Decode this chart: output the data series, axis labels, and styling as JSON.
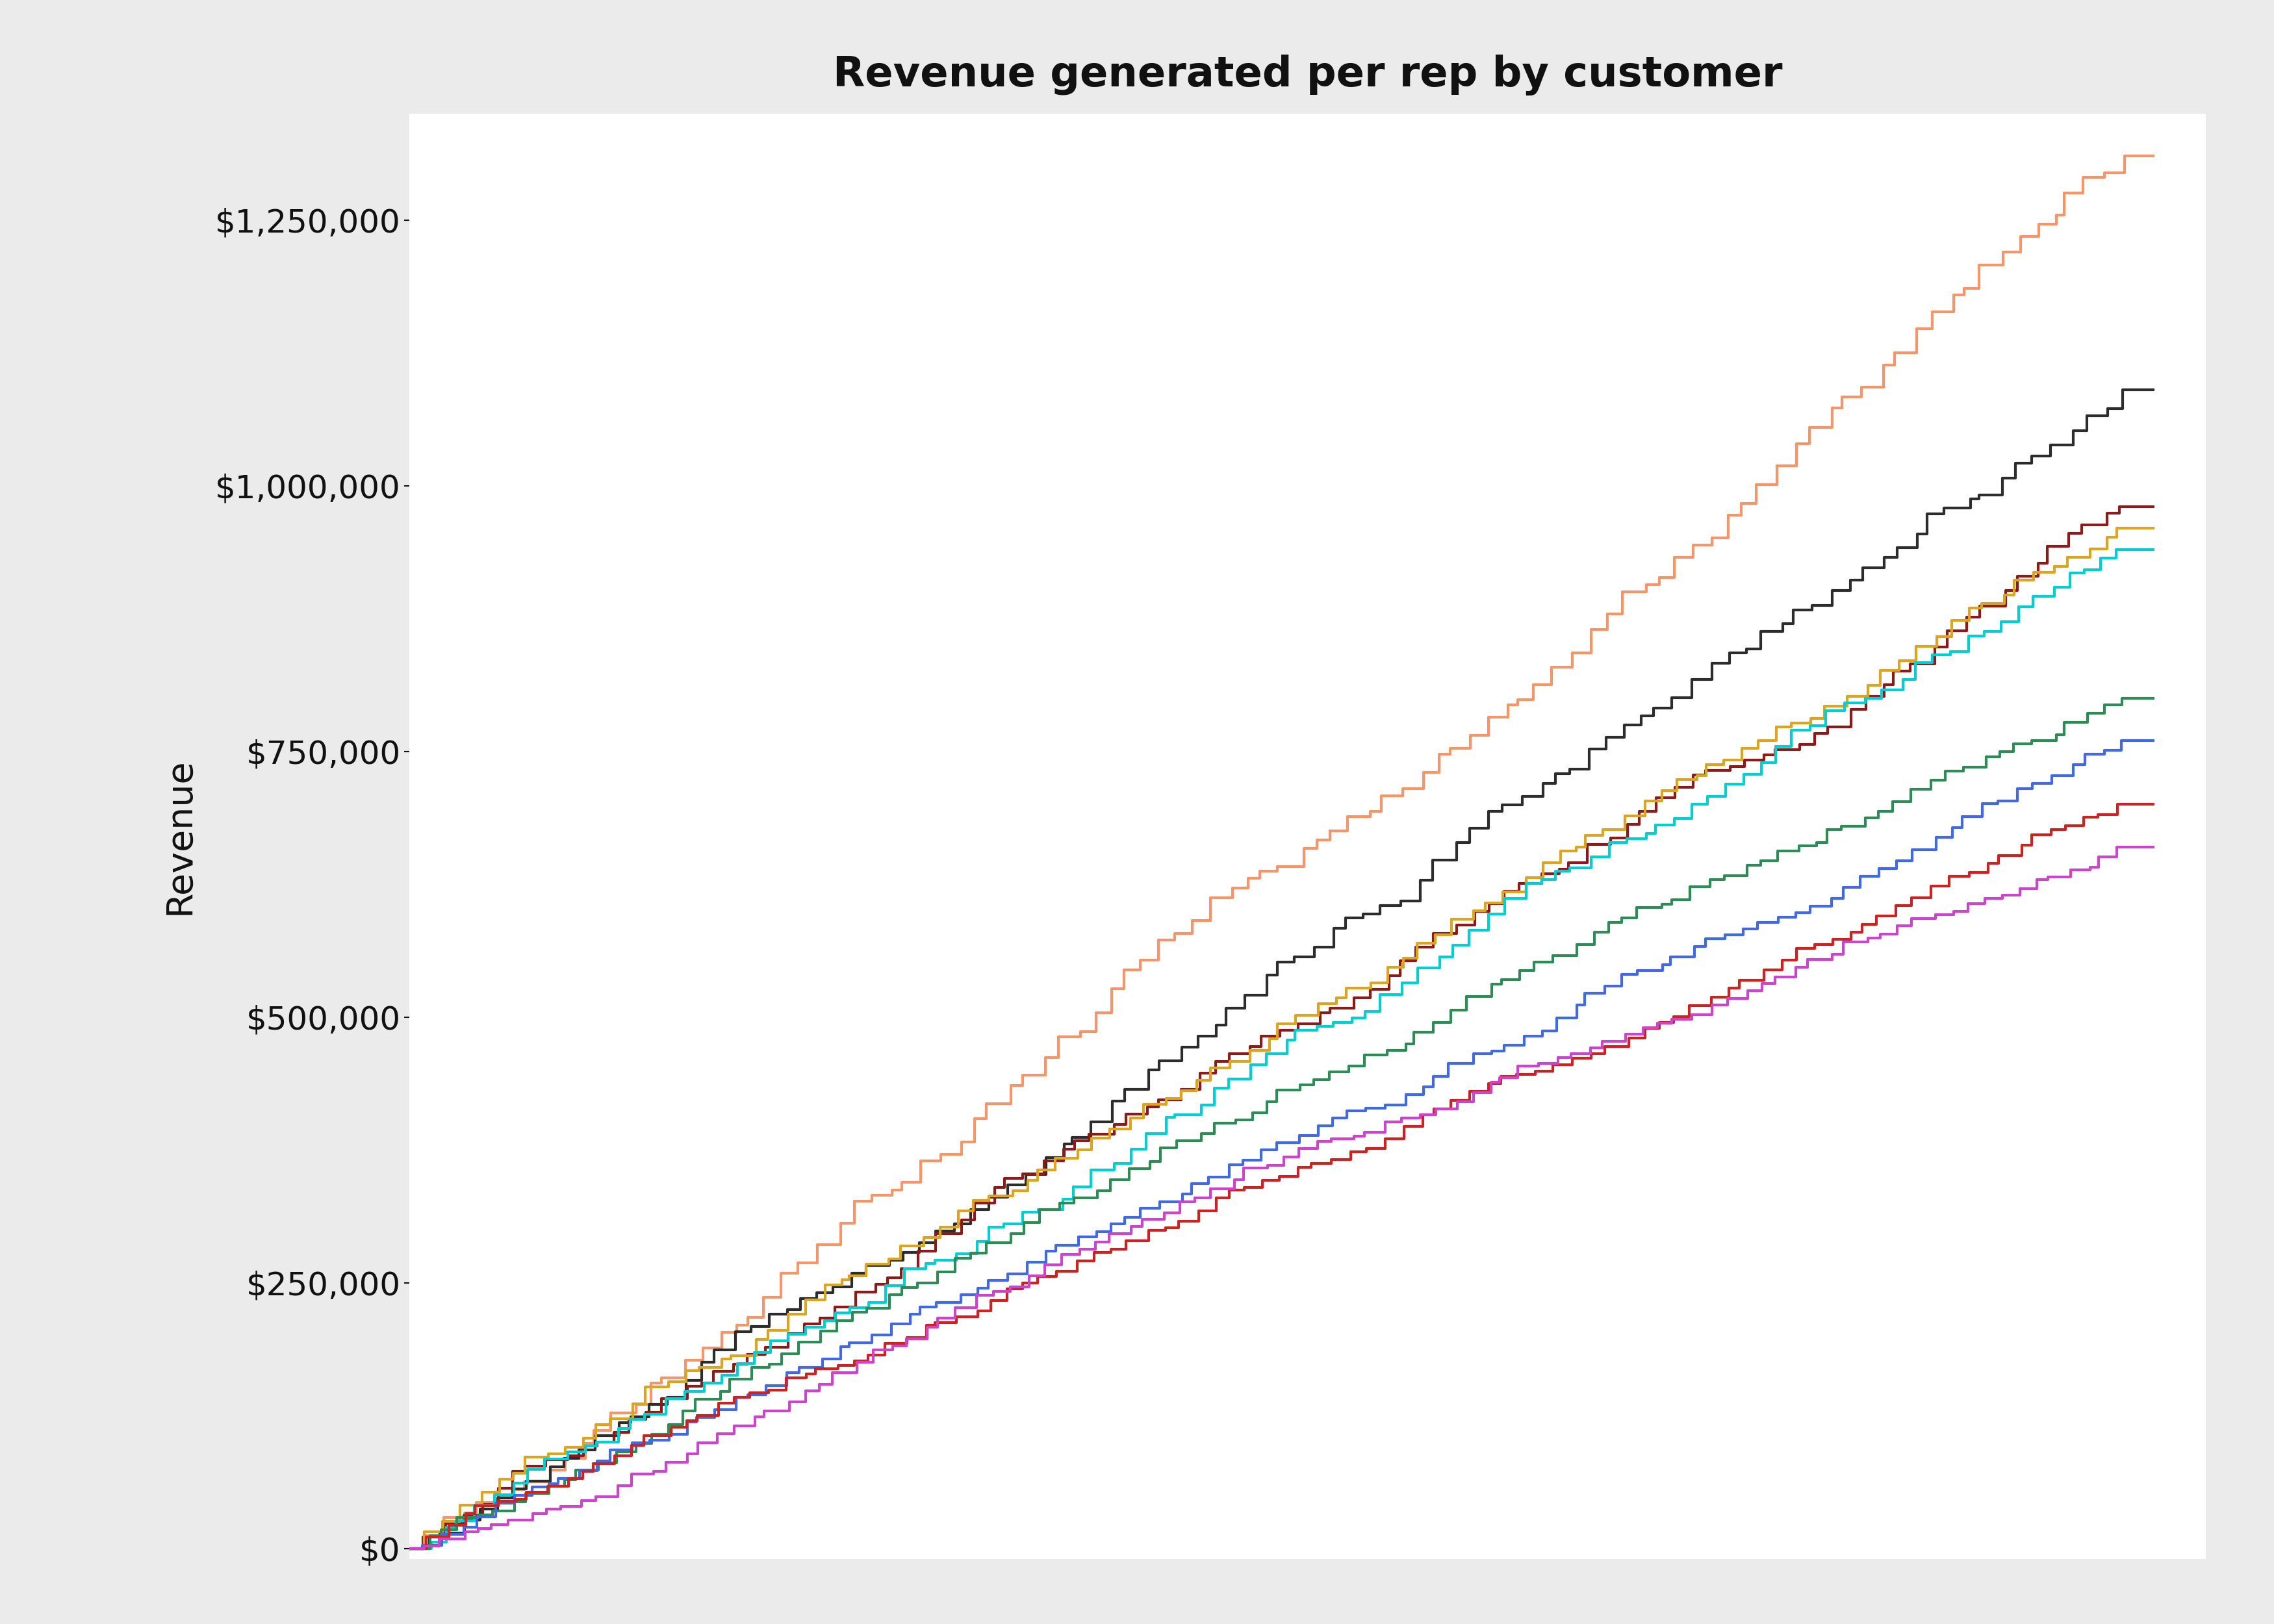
{
  "title": "Revenue generated per rep by customer",
  "ylabel": "Revenue",
  "ylim": [
    -10000,
    1350000
  ],
  "xlim": [
    0,
    105
  ],
  "background_color": "#ebebeb",
  "plot_background": "#ffffff",
  "title_fontsize": 46,
  "label_fontsize": 40,
  "tick_fontsize": 36,
  "line_width": 3.0,
  "series_colors": [
    "#F4956A",
    "#2c2c2c",
    "#8B1A1A",
    "#DAA520",
    "#00CED1",
    "#2E8B57",
    "#4169E1",
    "#CC2222",
    "#CC44CC"
  ],
  "n_customers": 100,
  "final_values": [
    1310000,
    1090000,
    980000,
    960000,
    940000,
    800000,
    760000,
    700000,
    660000
  ],
  "seeds": [
    1,
    2,
    3,
    4,
    5,
    6,
    7,
    8,
    9
  ]
}
